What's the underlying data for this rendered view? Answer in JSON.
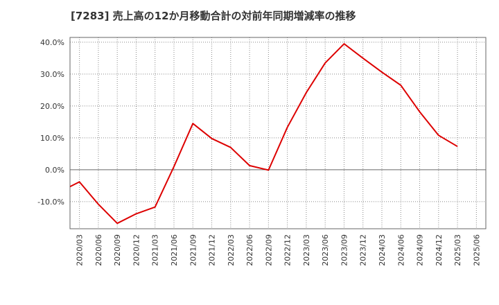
{
  "chart_data": {
    "type": "line",
    "title": "[7283]  売上高の12か月移動合計の対前年同期増減率の推移",
    "xlabel": "",
    "ylabel": "",
    "ylim": [
      -18.5,
      41.5
    ],
    "yticks": [
      40,
      30,
      20,
      10,
      0,
      -10
    ],
    "ytick_labels": [
      "40.0%",
      "30.0%",
      "20.0%",
      "10.0%",
      "0.0%",
      "-10.0%"
    ],
    "x_tick_labels": [
      "2020/03",
      "2020/06",
      "2020/09",
      "2020/12",
      "2021/03",
      "2021/06",
      "2021/09",
      "2021/12",
      "2022/03",
      "2022/06",
      "2022/09",
      "2022/12",
      "2023/03",
      "2023/06",
      "2023/09",
      "2023/12",
      "2024/03",
      "2024/06",
      "2024/09",
      "2024/12",
      "2025/03",
      "2025/06"
    ],
    "grid": true,
    "series": [
      {
        "name": "増減率",
        "color": "#dd0000",
        "x": [
          "2020/03",
          "2020/06",
          "2020/09",
          "2020/12",
          "2021/03",
          "2021/06",
          "2021/09",
          "2021/12",
          "2022/03",
          "2022/06",
          "2022/09",
          "2022/12",
          "2023/03",
          "2023/06",
          "2023/09",
          "2023/12",
          "2024/03",
          "2024/06",
          "2024/09",
          "2024/12",
          "2025/03"
        ],
        "values": [
          -3.8,
          -10.8,
          -16.8,
          -13.8,
          -11.7,
          1.0,
          14.5,
          9.8,
          7.0,
          1.3,
          -0.1,
          13.3,
          24.2,
          33.5,
          39.5,
          35.0,
          30.6,
          26.5,
          18.2,
          10.8,
          7.3
        ]
      }
    ]
  }
}
